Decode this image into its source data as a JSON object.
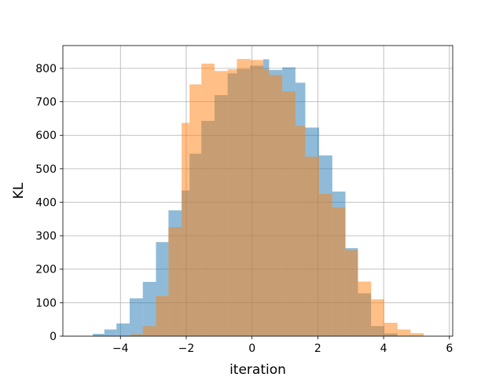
{
  "chart_data": {
    "type": "bar",
    "title": "",
    "xlabel": "iteration",
    "ylabel": "KL",
    "xlim": [
      -5.75,
      6.1
    ],
    "ylim": [
      0,
      868
    ],
    "xticks": [
      -4,
      -2,
      0,
      2,
      4,
      6
    ],
    "xtick_labels": [
      "−4",
      "−2",
      "0",
      "2",
      "4",
      "6"
    ],
    "yticks": [
      0,
      100,
      200,
      300,
      400,
      500,
      600,
      700,
      800
    ],
    "ytick_labels": [
      "0",
      "100",
      "200",
      "300",
      "400",
      "500",
      "600",
      "700",
      "800"
    ],
    "grid": true,
    "legend": "none",
    "series": [
      {
        "color": "#1f77b4",
        "opacity": 0.5,
        "bins": [
          [
            -4.84,
            -4.49,
            7
          ],
          [
            -4.49,
            -4.12,
            20
          ],
          [
            -4.12,
            -3.72,
            38
          ],
          [
            -3.72,
            -3.32,
            113
          ],
          [
            -3.32,
            -2.92,
            162
          ],
          [
            -2.92,
            -2.54,
            281
          ],
          [
            -2.54,
            -2.14,
            376
          ],
          [
            -2.14,
            -1.9,
            435
          ],
          [
            -1.9,
            -1.54,
            545
          ],
          [
            -1.54,
            -1.14,
            643
          ],
          [
            -1.14,
            -0.74,
            720
          ],
          [
            -0.74,
            -0.46,
            785
          ],
          [
            -0.46,
            -0.06,
            798
          ],
          [
            -0.06,
            0.34,
            808
          ],
          [
            0.34,
            0.52,
            827
          ],
          [
            0.52,
            0.92,
            795
          ],
          [
            0.92,
            1.32,
            803
          ],
          [
            1.32,
            1.62,
            757
          ],
          [
            1.62,
            2.04,
            623
          ],
          [
            2.04,
            2.44,
            540
          ],
          [
            2.44,
            2.84,
            432
          ],
          [
            2.84,
            3.22,
            263
          ],
          [
            3.22,
            3.62,
            128
          ],
          [
            3.62,
            4.02,
            30
          ],
          [
            4.02,
            4.42,
            8
          ]
        ]
      },
      {
        "color": "#ff7f0e",
        "opacity": 0.5,
        "bins": [
          [
            -3.69,
            -3.32,
            6
          ],
          [
            -3.32,
            -2.92,
            30
          ],
          [
            -2.92,
            -2.54,
            120
          ],
          [
            -2.54,
            -2.14,
            326
          ],
          [
            -2.14,
            -1.9,
            637
          ],
          [
            -1.9,
            -1.54,
            752
          ],
          [
            -1.54,
            -1.14,
            814
          ],
          [
            -1.14,
            -0.74,
            792
          ],
          [
            -0.74,
            -0.46,
            797
          ],
          [
            -0.46,
            -0.06,
            828
          ],
          [
            -0.06,
            0.34,
            825
          ],
          [
            0.34,
            0.52,
            797
          ],
          [
            0.52,
            0.92,
            780
          ],
          [
            0.92,
            1.32,
            731
          ],
          [
            1.32,
            1.62,
            628
          ],
          [
            1.62,
            2.04,
            536
          ],
          [
            2.04,
            2.44,
            425
          ],
          [
            2.44,
            2.84,
            385
          ],
          [
            2.84,
            3.22,
            257
          ],
          [
            3.22,
            3.62,
            163
          ],
          [
            3.62,
            4.02,
            110
          ],
          [
            4.02,
            4.42,
            40
          ],
          [
            4.42,
            4.82,
            20
          ],
          [
            4.82,
            5.22,
            9
          ]
        ]
      }
    ]
  }
}
